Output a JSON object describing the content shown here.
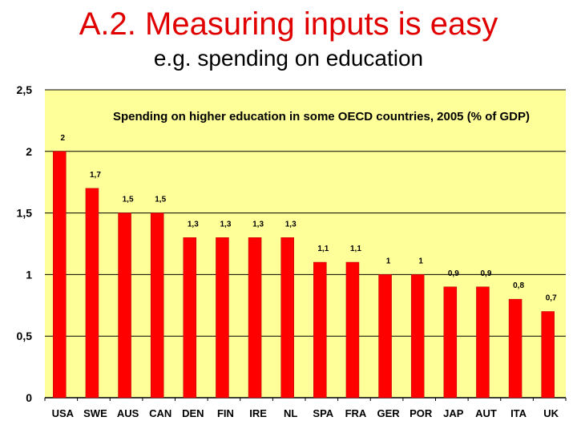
{
  "slide": {
    "title": "A.2. Measuring inputs is easy",
    "subtitle": "e.g. spending on education"
  },
  "colors": {
    "plot_background": "#ffff99",
    "bar_fill": "#ff0000",
    "title_color": "#e00000"
  },
  "chart_data": {
    "type": "bar",
    "title": "Spending on higher education in some OECD countries, 2005 (% of GDP)",
    "xlabel": "",
    "ylabel": "",
    "categories": [
      "USA",
      "SWE",
      "AUS",
      "CAN",
      "DEN",
      "FIN",
      "IRE",
      "NL",
      "SPA",
      "FRA",
      "GER",
      "POR",
      "JAP",
      "AUT",
      "ITA",
      "UK"
    ],
    "values": [
      2,
      1.7,
      1.5,
      1.5,
      1.3,
      1.3,
      1.3,
      1.3,
      1.1,
      1.1,
      1,
      1,
      0.9,
      0.9,
      0.8,
      0.7
    ],
    "value_labels": [
      "2",
      "1,7",
      "1,5",
      "1,5",
      "1,3",
      "1,3",
      "1,3",
      "1,3",
      "1,1",
      "1,1",
      "1",
      "1",
      "0,9",
      "0,9",
      "0,8",
      "0,7"
    ],
    "ylim": [
      0,
      2.5
    ],
    "y_ticks": [
      0,
      0.5,
      1,
      1.5,
      2,
      2.5
    ],
    "y_tick_labels": [
      "0",
      "0,5",
      "1",
      "1,5",
      "2",
      "2,5"
    ],
    "grid": true,
    "legend": "none"
  }
}
